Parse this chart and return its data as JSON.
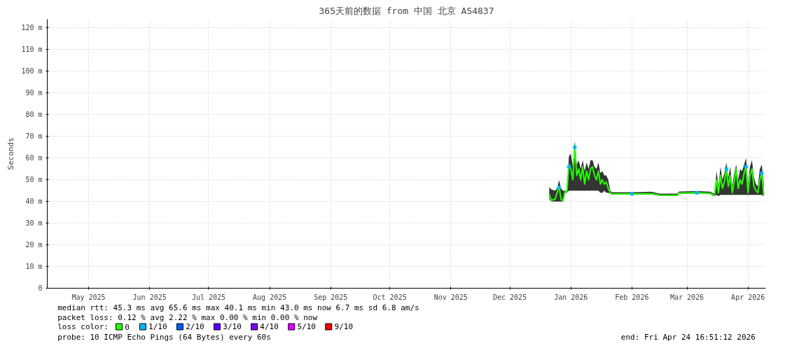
{
  "chart_data": {
    "type": "line",
    "title": "365天前的数据 from 中国 北京 AS4837",
    "ylabel": "Seconds",
    "xlim": [
      "2025-04-24",
      "2026-04-24"
    ],
    "ylim": [
      0,
      124
    ],
    "xticks": [
      {
        "value": "2025-05-15",
        "label": "May 2025"
      },
      {
        "value": "2025-06-15",
        "label": "Jun 2025"
      },
      {
        "value": "2025-07-15",
        "label": "Jul 2025"
      },
      {
        "value": "2025-08-15",
        "label": "Aug 2025"
      },
      {
        "value": "2025-09-15",
        "label": "Sep 2025"
      },
      {
        "value": "2025-10-15",
        "label": "Oct 2025"
      },
      {
        "value": "2025-11-15",
        "label": "Nov 2025"
      },
      {
        "value": "2025-12-15",
        "label": "Dec 2025"
      },
      {
        "value": "2026-01-15",
        "label": "Jan 2026"
      },
      {
        "value": "2026-02-15",
        "label": "Feb 2026"
      },
      {
        "value": "2026-03-15",
        "label": "Mar 2026"
      },
      {
        "value": "2026-04-15",
        "label": "Apr 2026"
      }
    ],
    "yticks": [
      0,
      {
        "value": 10,
        "label": "10 m"
      },
      {
        "value": 20,
        "label": "20 m"
      },
      {
        "value": 30,
        "label": "30 m"
      },
      {
        "value": 40,
        "label": "40 m"
      },
      {
        "value": 50,
        "label": "50 m"
      },
      {
        "value": 60,
        "label": "60 m"
      },
      {
        "value": 70,
        "label": "70 m"
      },
      {
        "value": 80,
        "label": "80 m"
      },
      {
        "value": 90,
        "label": "90 m"
      },
      {
        "value": 100,
        "label": "100 m"
      },
      {
        "value": 110,
        "label": "110 m"
      },
      {
        "value": 120,
        "label": "120 m"
      }
    ],
    "grid": true,
    "legend": "bottom left",
    "legend_title": "loss color:",
    "x": [
      "2026-01-04",
      "2026-01-05",
      "2026-01-07",
      "2026-01-08",
      "2026-01-09",
      "2026-01-10",
      "2026-01-11",
      "2026-01-12",
      "2026-01-13",
      "2026-01-14",
      "2026-01-15",
      "2026-01-16",
      "2026-01-17",
      "2026-01-18",
      "2026-01-19",
      "2026-01-20",
      "2026-01-21",
      "2026-01-22",
      "2026-01-23",
      "2026-01-24",
      "2026-01-25",
      "2026-01-26",
      "2026-01-27",
      "2026-01-28",
      "2026-01-29",
      "2026-01-30",
      "2026-01-31",
      "2026-02-01",
      "2026-02-02",
      "2026-02-03",
      "2026-02-04",
      "2026-02-05",
      "2026-02-15",
      "2026-02-25",
      "2026-03-01",
      "2026-03-10",
      "2026-03-11",
      "2026-03-20",
      "2026-03-27",
      "2026-03-28",
      "2026-03-29",
      "2026-03-30",
      "2026-03-31",
      "2026-04-01",
      "2026-04-02",
      "2026-04-03",
      "2026-04-04",
      "2026-04-05",
      "2026-04-06",
      "2026-04-07",
      "2026-04-08",
      "2026-04-09",
      "2026-04-10",
      "2026-04-11",
      "2026-04-12",
      "2026-04-13",
      "2026-04-14",
      "2026-04-15",
      "2026-04-16",
      "2026-04-17",
      "2026-04-18",
      "2026-04-19",
      "2026-04-20",
      "2026-04-21",
      "2026-04-22",
      "2026-04-23"
    ],
    "series": [
      {
        "name": "0",
        "color": "#26ff00",
        "values": [
          43.4,
          40.5,
          41.0,
          44.0,
          47.0,
          41.0,
          40.2,
          44.5,
          44.5,
          57,
          55,
          50,
          65.6,
          52,
          55,
          50,
          56,
          48,
          54,
          50,
          55,
          56,
          52,
          50,
          54,
          48,
          50,
          48,
          49,
          46,
          44,
          43.4,
          43.5,
          43.6,
          42.9,
          42.8,
          43.8,
          44.0,
          43.7,
          43.0,
          43,
          50,
          44,
          52,
          46,
          49,
          55,
          47,
          52,
          44,
          49,
          55,
          46,
          50,
          48,
          53,
          56,
          44,
          52,
          55,
          47,
          45,
          44,
          50,
          53,
          43
        ],
        "lower": [
          41,
          40,
          40,
          40,
          40,
          40,
          40,
          44,
          44,
          45,
          45,
          45,
          45,
          45,
          45,
          45,
          45,
          45,
          45,
          45,
          45,
          45,
          45,
          45,
          45,
          44,
          44,
          45,
          44,
          44,
          43.5,
          43.2,
          43.2,
          43.2,
          42.6,
          42.5,
          43.5,
          43.7,
          43.4,
          42.7,
          42.5,
          43,
          42.5,
          43,
          43,
          43,
          43,
          43,
          43,
          43,
          43,
          43,
          43,
          43,
          43,
          43,
          43,
          43,
          43,
          43,
          43,
          43,
          43,
          43,
          43,
          42.5
        ],
        "upper": [
          46.6,
          45.5,
          45,
          46,
          49.8,
          46,
          45,
          45,
          45,
          60.8,
          62,
          56,
          68,
          57,
          59,
          55,
          59,
          54,
          58,
          55,
          59,
          59,
          56,
          55,
          58,
          53,
          54,
          52,
          52,
          50,
          45,
          44.2,
          44.2,
          44.5,
          43.6,
          43.6,
          44.6,
          44.8,
          44.5,
          43.8,
          44,
          54,
          47,
          56,
          50,
          53,
          58,
          51,
          56,
          47,
          53,
          57,
          50,
          55,
          54,
          57,
          60,
          48,
          56,
          59,
          51,
          48,
          47,
          55,
          57,
          48
        ]
      },
      {
        "name": "1/10",
        "color": "#00b8ff",
        "type": "scatter",
        "x": [
          "2026-01-09",
          "2026-01-14",
          "2026-01-17",
          "2026-02-15",
          "2026-03-20",
          "2026-04-04",
          "2026-04-14",
          "2026-04-22"
        ],
        "values": [
          46.5,
          56,
          65,
          43.5,
          44.0,
          55,
          56,
          53
        ]
      },
      {
        "name": "2/10",
        "color": "#0059ff",
        "type": "scatter",
        "values": [
          null,
          null,
          null,
          null,
          null,
          null,
          null,
          null,
          null,
          null,
          null,
          null,
          null,
          null,
          null,
          null,
          null,
          null,
          null,
          null,
          null,
          null,
          null,
          null,
          null,
          null,
          null,
          null,
          null,
          null,
          null,
          null,
          null,
          null,
          null,
          null,
          null,
          null,
          null,
          null,
          null,
          null,
          null,
          null,
          null,
          null,
          null,
          null,
          null,
          null,
          null,
          null,
          null,
          null,
          null,
          null,
          null,
          null,
          null,
          null,
          null,
          null,
          null,
          null,
          null,
          null
        ]
      },
      {
        "name": "3/10",
        "color": "#5e00ff",
        "type": "scatter",
        "values": [
          null,
          null,
          null,
          null,
          null,
          null,
          null,
          null,
          null,
          null,
          null,
          null,
          null,
          null,
          null,
          null,
          null,
          null,
          null,
          null,
          null,
          null,
          null,
          null,
          null,
          null,
          null,
          null,
          null,
          null,
          null,
          null,
          null,
          null,
          null,
          null,
          null,
          null,
          null,
          null,
          null,
          null,
          null,
          null,
          null,
          null,
          null,
          null,
          null,
          null,
          null,
          null,
          null,
          null,
          null,
          null,
          null,
          null,
          null,
          null,
          null,
          null,
          null,
          null,
          null,
          null
        ]
      },
      {
        "name": "4/10",
        "color": "#7e00ff",
        "type": "scatter",
        "values": [
          null,
          null,
          null,
          null,
          null,
          null,
          null,
          null,
          null,
          null,
          null,
          null,
          null,
          null,
          null,
          null,
          null,
          null,
          null,
          null,
          null,
          null,
          null,
          null,
          null,
          null,
          null,
          null,
          null,
          null,
          null,
          null,
          null,
          null,
          null,
          null,
          null,
          null,
          null,
          null,
          null,
          null,
          null,
          null,
          null,
          null,
          null,
          null,
          null,
          null,
          null,
          null,
          null,
          null,
          null,
          null,
          null,
          null,
          null,
          null,
          null,
          null,
          null,
          null,
          null,
          null
        ]
      },
      {
        "name": "5/10",
        "color": "#dd00ff",
        "type": "scatter",
        "values": [
          null,
          null,
          null,
          null,
          null,
          null,
          null,
          null,
          null,
          null,
          null,
          null,
          null,
          null,
          null,
          null,
          null,
          null,
          null,
          null,
          null,
          null,
          null,
          null,
          null,
          null,
          null,
          null,
          null,
          null,
          null,
          null,
          null,
          null,
          null,
          null,
          null,
          null,
          null,
          null,
          null,
          null,
          null,
          null,
          null,
          null,
          null,
          null,
          null,
          null,
          null,
          null,
          null,
          null,
          null,
          null,
          null,
          null,
          null,
          null,
          null,
          null,
          null,
          null,
          null,
          null
        ]
      },
      {
        "name": "9/10",
        "color": "#ff0000",
        "type": "scatter",
        "values": [
          null,
          null,
          null,
          null,
          null,
          null,
          null,
          null,
          null,
          null,
          null,
          null,
          null,
          null,
          null,
          null,
          null,
          null,
          null,
          null,
          null,
          null,
          null,
          null,
          null,
          null,
          null,
          null,
          null,
          null,
          null,
          null,
          null,
          null,
          null,
          null,
          null,
          null,
          null,
          null,
          null,
          null,
          null,
          null,
          null,
          null,
          null,
          null,
          null,
          null,
          null,
          null,
          null,
          null,
          null,
          null,
          null,
          null,
          null,
          null,
          null,
          null,
          null,
          null,
          null,
          null
        ]
      }
    ],
    "annotations": [
      "median rtt:  45.3 ms avg  65.6 ms max  40.1 ms min  43.0 ms now  6.7 ms sd  6.8   am/s",
      "packet loss: 0.12 % avg  2.22 % max  0.00 % min  0.00 % now",
      "probe:       10 ICMP Echo Pings (64 Bytes) every 60s",
      "end: Fri Apr 24 16:51:12 2026"
    ]
  }
}
